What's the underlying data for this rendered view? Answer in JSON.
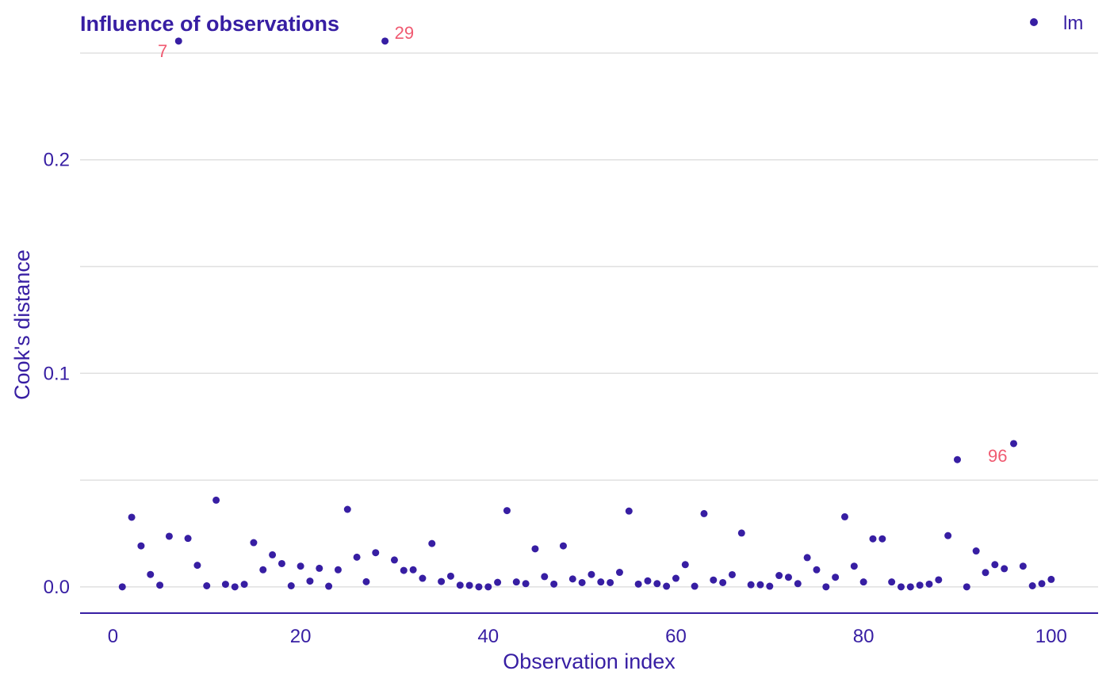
{
  "chart_data": {
    "type": "scatter",
    "title": "Influence of observations",
    "xlabel": "Observation index",
    "ylabel": "Cook's distance",
    "xlim": [
      -3.5,
      105
    ],
    "ylim": [
      -0.0123,
      0.26
    ],
    "xticks": [
      0,
      20,
      40,
      60,
      80,
      100
    ],
    "xtick_labels": [
      "0",
      "20",
      "40",
      "60",
      "80",
      "100"
    ],
    "yticks": [
      0.0,
      0.1,
      0.2
    ],
    "ytick_labels": [
      "0.0",
      "0.1",
      "0.2"
    ],
    "y_minor_gridlines": [
      0.05,
      0.15,
      0.25
    ],
    "grid": "horizontal",
    "legend": {
      "position": "top-right",
      "entries": [
        "lm"
      ]
    },
    "colors": {
      "points": "#371ea3",
      "labels": "#f05a71",
      "text": "#371ea3",
      "grid": "#e0e0e0"
    },
    "series": [
      {
        "name": "lm",
        "x": [
          1,
          2,
          3,
          4,
          5,
          6,
          7,
          8,
          9,
          10,
          11,
          12,
          13,
          14,
          15,
          16,
          17,
          18,
          19,
          20,
          21,
          22,
          23,
          24,
          25,
          26,
          27,
          28,
          29,
          30,
          31,
          32,
          33,
          34,
          35,
          36,
          37,
          38,
          39,
          40,
          41,
          42,
          43,
          44,
          45,
          46,
          47,
          48,
          49,
          50,
          51,
          52,
          53,
          54,
          55,
          56,
          57,
          58,
          59,
          60,
          61,
          62,
          63,
          64,
          65,
          66,
          67,
          68,
          69,
          70,
          71,
          72,
          73,
          74,
          75,
          76,
          77,
          78,
          79,
          80,
          81,
          82,
          83,
          84,
          85,
          86,
          87,
          88,
          89,
          90,
          91,
          92,
          93,
          94,
          95,
          96,
          97,
          98,
          99,
          100
        ],
        "y": [
          0.0,
          0.0326,
          0.0192,
          0.0058,
          0.0008,
          0.0237,
          0.2556,
          0.0227,
          0.0101,
          0.0005,
          0.0406,
          0.0012,
          0.0,
          0.0012,
          0.0207,
          0.008,
          0.015,
          0.0109,
          0.0005,
          0.0097,
          0.0027,
          0.0087,
          0.0003,
          0.008,
          0.0363,
          0.0139,
          0.0024,
          0.016,
          0.2556,
          0.0126,
          0.0077,
          0.008,
          0.004,
          0.0203,
          0.0025,
          0.005,
          0.0008,
          0.0007,
          0.0,
          0.0,
          0.0021,
          0.0357,
          0.0023,
          0.0015,
          0.0178,
          0.0048,
          0.0013,
          0.0192,
          0.0037,
          0.002,
          0.0058,
          0.0023,
          0.002,
          0.0068,
          0.0355,
          0.0013,
          0.0028,
          0.0015,
          0.0003,
          0.004,
          0.0104,
          0.0003,
          0.0343,
          0.0032,
          0.002,
          0.0057,
          0.0252,
          0.001,
          0.001,
          0.0003,
          0.0053,
          0.0045,
          0.0015,
          0.0137,
          0.008,
          0.0,
          0.0045,
          0.0328,
          0.0097,
          0.0023,
          0.0225,
          0.0225,
          0.0023,
          0.0,
          0.0,
          0.0008,
          0.0013,
          0.0033,
          0.024,
          0.0596,
          0.0,
          0.0168,
          0.0067,
          0.0104,
          0.0085,
          0.0671,
          0.0097,
          0.0005,
          0.0015,
          0.0035
        ]
      }
    ],
    "annotations": [
      {
        "x": 7,
        "y": 0.2556,
        "text": "7"
      },
      {
        "x": 29,
        "y": 0.2556,
        "text": "29"
      },
      {
        "x": 96,
        "y": 0.0671,
        "text": "96"
      }
    ]
  }
}
